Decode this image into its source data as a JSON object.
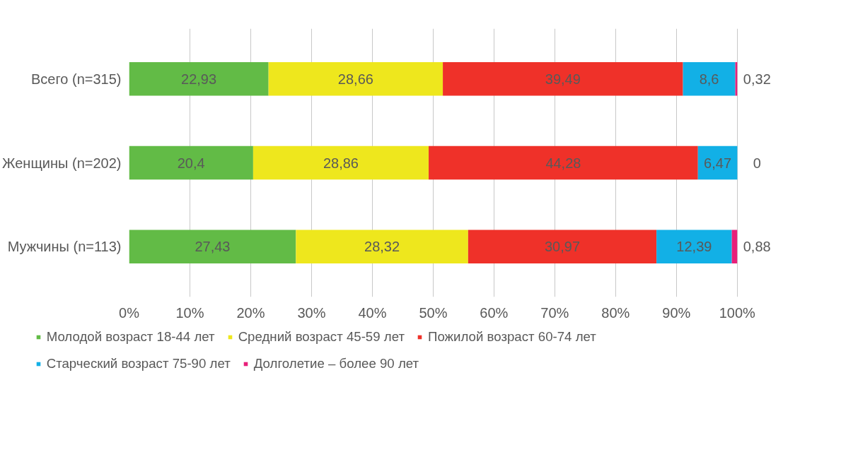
{
  "chart_data": {
    "type": "bar",
    "orientation": "horizontal",
    "stacked": true,
    "categories": [
      "Всего (n=315)",
      "Женщины (n=202)",
      "Мужчины (n=113)"
    ],
    "series": [
      {
        "name": "Молодой возраст 18-44 лет",
        "color": "#62bb46",
        "values": [
          22.93,
          20.4,
          27.43
        ],
        "value_labels": [
          "22,93",
          "20,4",
          "27,43"
        ]
      },
      {
        "name": "Средний возраст 45-59 лет",
        "color": "#eee71d",
        "values": [
          28.66,
          28.86,
          28.32
        ],
        "value_labels": [
          "28,66",
          "28,86",
          "28,32"
        ]
      },
      {
        "name": "Пожилой возраст 60-74 лет",
        "color": "#ef3129",
        "values": [
          39.49,
          44.28,
          30.97
        ],
        "value_labels": [
          "39,49",
          "44,28",
          "30,97"
        ]
      },
      {
        "name": "Старческий возраст 75-90 лет",
        "color": "#12b0e6",
        "values": [
          8.6,
          6.47,
          12.39
        ],
        "value_labels": [
          "8,6",
          "6,47",
          "12,39"
        ]
      },
      {
        "name": "Долголетие – более 90 лет",
        "color": "#e8207a",
        "values": [
          0.32,
          0,
          0.88
        ],
        "value_labels": [
          "0,32",
          "0",
          "0,88"
        ]
      }
    ],
    "xlim": [
      0,
      100
    ],
    "xticks": [
      {
        "value": 0,
        "label": "0%"
      },
      {
        "value": 10,
        "label": "10%"
      },
      {
        "value": 20,
        "label": "20%"
      },
      {
        "value": 30,
        "label": "30%"
      },
      {
        "value": 40,
        "label": "40%"
      },
      {
        "value": 50,
        "label": "50%"
      },
      {
        "value": 60,
        "label": "60%"
      },
      {
        "value": 70,
        "label": "70%"
      },
      {
        "value": 80,
        "label": "80%"
      },
      {
        "value": 90,
        "label": "90%"
      },
      {
        "value": 100,
        "label": "100%"
      }
    ],
    "grid": "x",
    "legend": "bottom"
  }
}
